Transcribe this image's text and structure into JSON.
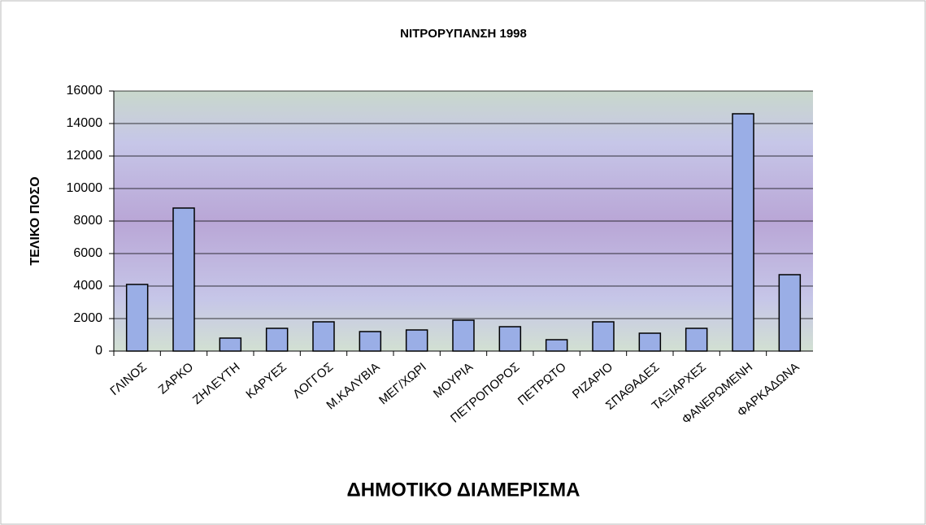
{
  "chart_data": {
    "type": "bar",
    "title": "ΝΙΤΡΟΡΥΠΑΝΣΗ 1998",
    "x_label": "ΔΗΜΟΤΙΚΟ ΔΙΑΜΕΡΙΣΜΑ",
    "y_label": "ΤΕΛΙΚΟ ΠΟΣΟ",
    "categories": [
      "ΓΛΙΝΟΣ",
      "ΖΑΡΚΟ",
      "ΖΗΛΕΥΤΗ",
      "ΚΑΡΥΕΣ",
      "ΛΟΓΓΟΣ",
      "Μ.ΚΑΛΥΒΙΑ",
      "ΜΕΓ/ΧΩΡΙ",
      "ΜΟΥΡΙΑ",
      "ΠΕΤΡΟΠΟΡΟΣ",
      "ΠΕΤΡΩΤΟ",
      "ΡΙΖΑΡΙΟ",
      "ΣΠΑΘΑΔΕΣ",
      "ΤΑΞΙΑΡΧΕΣ",
      "ΦΑΝΕΡΩΜΕΝΗ",
      "ΦΑΡΚΑΔΩΝΑ"
    ],
    "values": [
      4100,
      8800,
      800,
      1400,
      1800,
      1200,
      1300,
      1900,
      1500,
      700,
      1800,
      1100,
      1400,
      14600,
      4700
    ],
    "color": "#9aaee6",
    "ylim": [
      0,
      16000
    ],
    "yticks": [
      0,
      2000,
      4000,
      6000,
      8000,
      10000,
      12000,
      14000,
      16000
    ],
    "grid": true
  }
}
